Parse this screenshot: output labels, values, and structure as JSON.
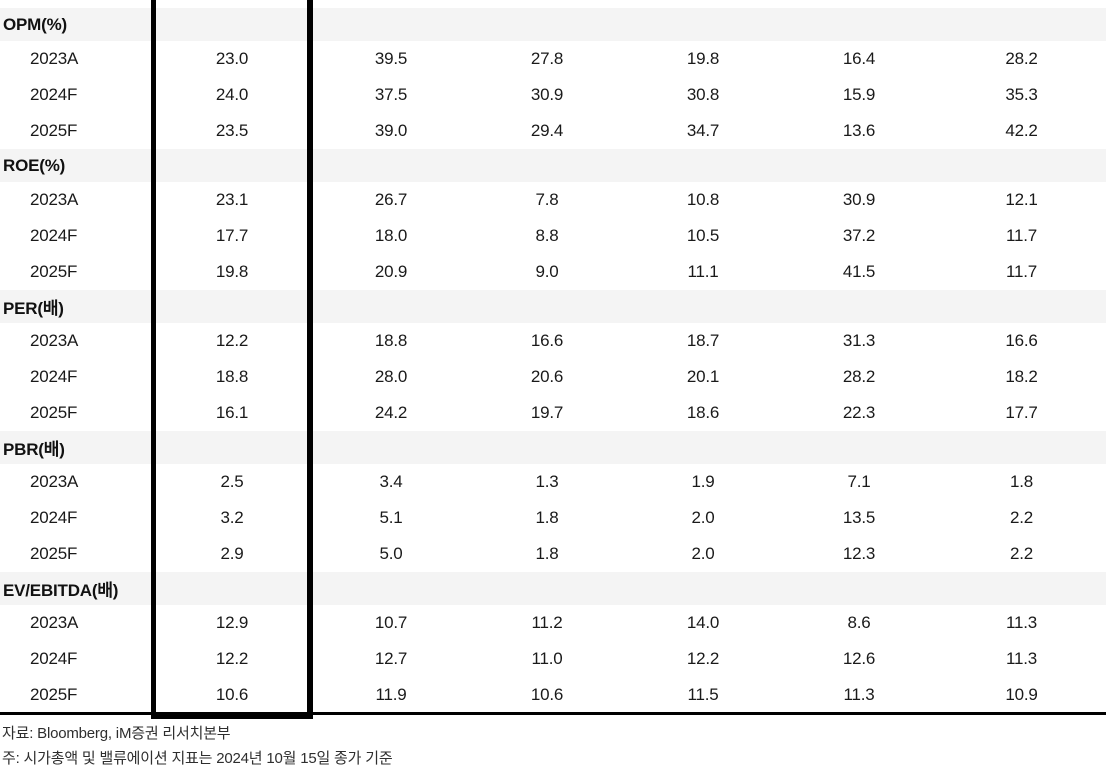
{
  "table": {
    "band_color": "#f4f4f4",
    "highlight_color": "#000000",
    "sections": [
      {
        "label": "OPM(%)",
        "rows": [
          {
            "label": "2023A",
            "values": [
              "23.0",
              "39.5",
              "27.8",
              "19.8",
              "16.4",
              "28.2"
            ]
          },
          {
            "label": "2024F",
            "values": [
              "24.0",
              "37.5",
              "30.9",
              "30.8",
              "15.9",
              "35.3"
            ]
          },
          {
            "label": "2025F",
            "values": [
              "23.5",
              "39.0",
              "29.4",
              "34.7",
              "13.6",
              "42.2"
            ]
          }
        ]
      },
      {
        "label": "ROE(%)",
        "rows": [
          {
            "label": "2023A",
            "values": [
              "23.1",
              "26.7",
              "7.8",
              "10.8",
              "30.9",
              "12.1"
            ]
          },
          {
            "label": "2024F",
            "values": [
              "17.7",
              "18.0",
              "8.8",
              "10.5",
              "37.2",
              "11.7"
            ]
          },
          {
            "label": "2025F",
            "values": [
              "19.8",
              "20.9",
              "9.0",
              "11.1",
              "41.5",
              "11.7"
            ]
          }
        ]
      },
      {
        "label": "PER(배)",
        "rows": [
          {
            "label": "2023A",
            "values": [
              "12.2",
              "18.8",
              "16.6",
              "18.7",
              "31.3",
              "16.6"
            ]
          },
          {
            "label": "2024F",
            "values": [
              "18.8",
              "28.0",
              "20.6",
              "20.1",
              "28.2",
              "18.2"
            ]
          },
          {
            "label": "2025F",
            "values": [
              "16.1",
              "24.2",
              "19.7",
              "18.6",
              "22.3",
              "17.7"
            ]
          }
        ]
      },
      {
        "label": "PBR(배)",
        "rows": [
          {
            "label": "2023A",
            "values": [
              "2.5",
              "3.4",
              "1.3",
              "1.9",
              "7.1",
              "1.8"
            ]
          },
          {
            "label": "2024F",
            "values": [
              "3.2",
              "5.1",
              "1.8",
              "2.0",
              "13.5",
              "2.2"
            ]
          },
          {
            "label": "2025F",
            "values": [
              "2.9",
              "5.0",
              "1.8",
              "2.0",
              "12.3",
              "2.2"
            ]
          }
        ]
      },
      {
        "label": "EV/EBITDA(배)",
        "rows": [
          {
            "label": "2023A",
            "values": [
              "12.9",
              "10.7",
              "11.2",
              "14.0",
              "8.6",
              "11.3"
            ]
          },
          {
            "label": "2024F",
            "values": [
              "12.2",
              "12.7",
              "11.0",
              "12.2",
              "12.6",
              "11.3"
            ]
          },
          {
            "label": "2025F",
            "values": [
              "10.6",
              "11.9",
              "10.6",
              "11.5",
              "11.3",
              "10.9"
            ]
          }
        ]
      }
    ]
  },
  "footer": {
    "source": "자료: Bloomberg, iM증권 리서치본부",
    "note": "주: 시가총액 및 밸류에이션 지표는 2024년 10월 15일 종가 기준"
  }
}
